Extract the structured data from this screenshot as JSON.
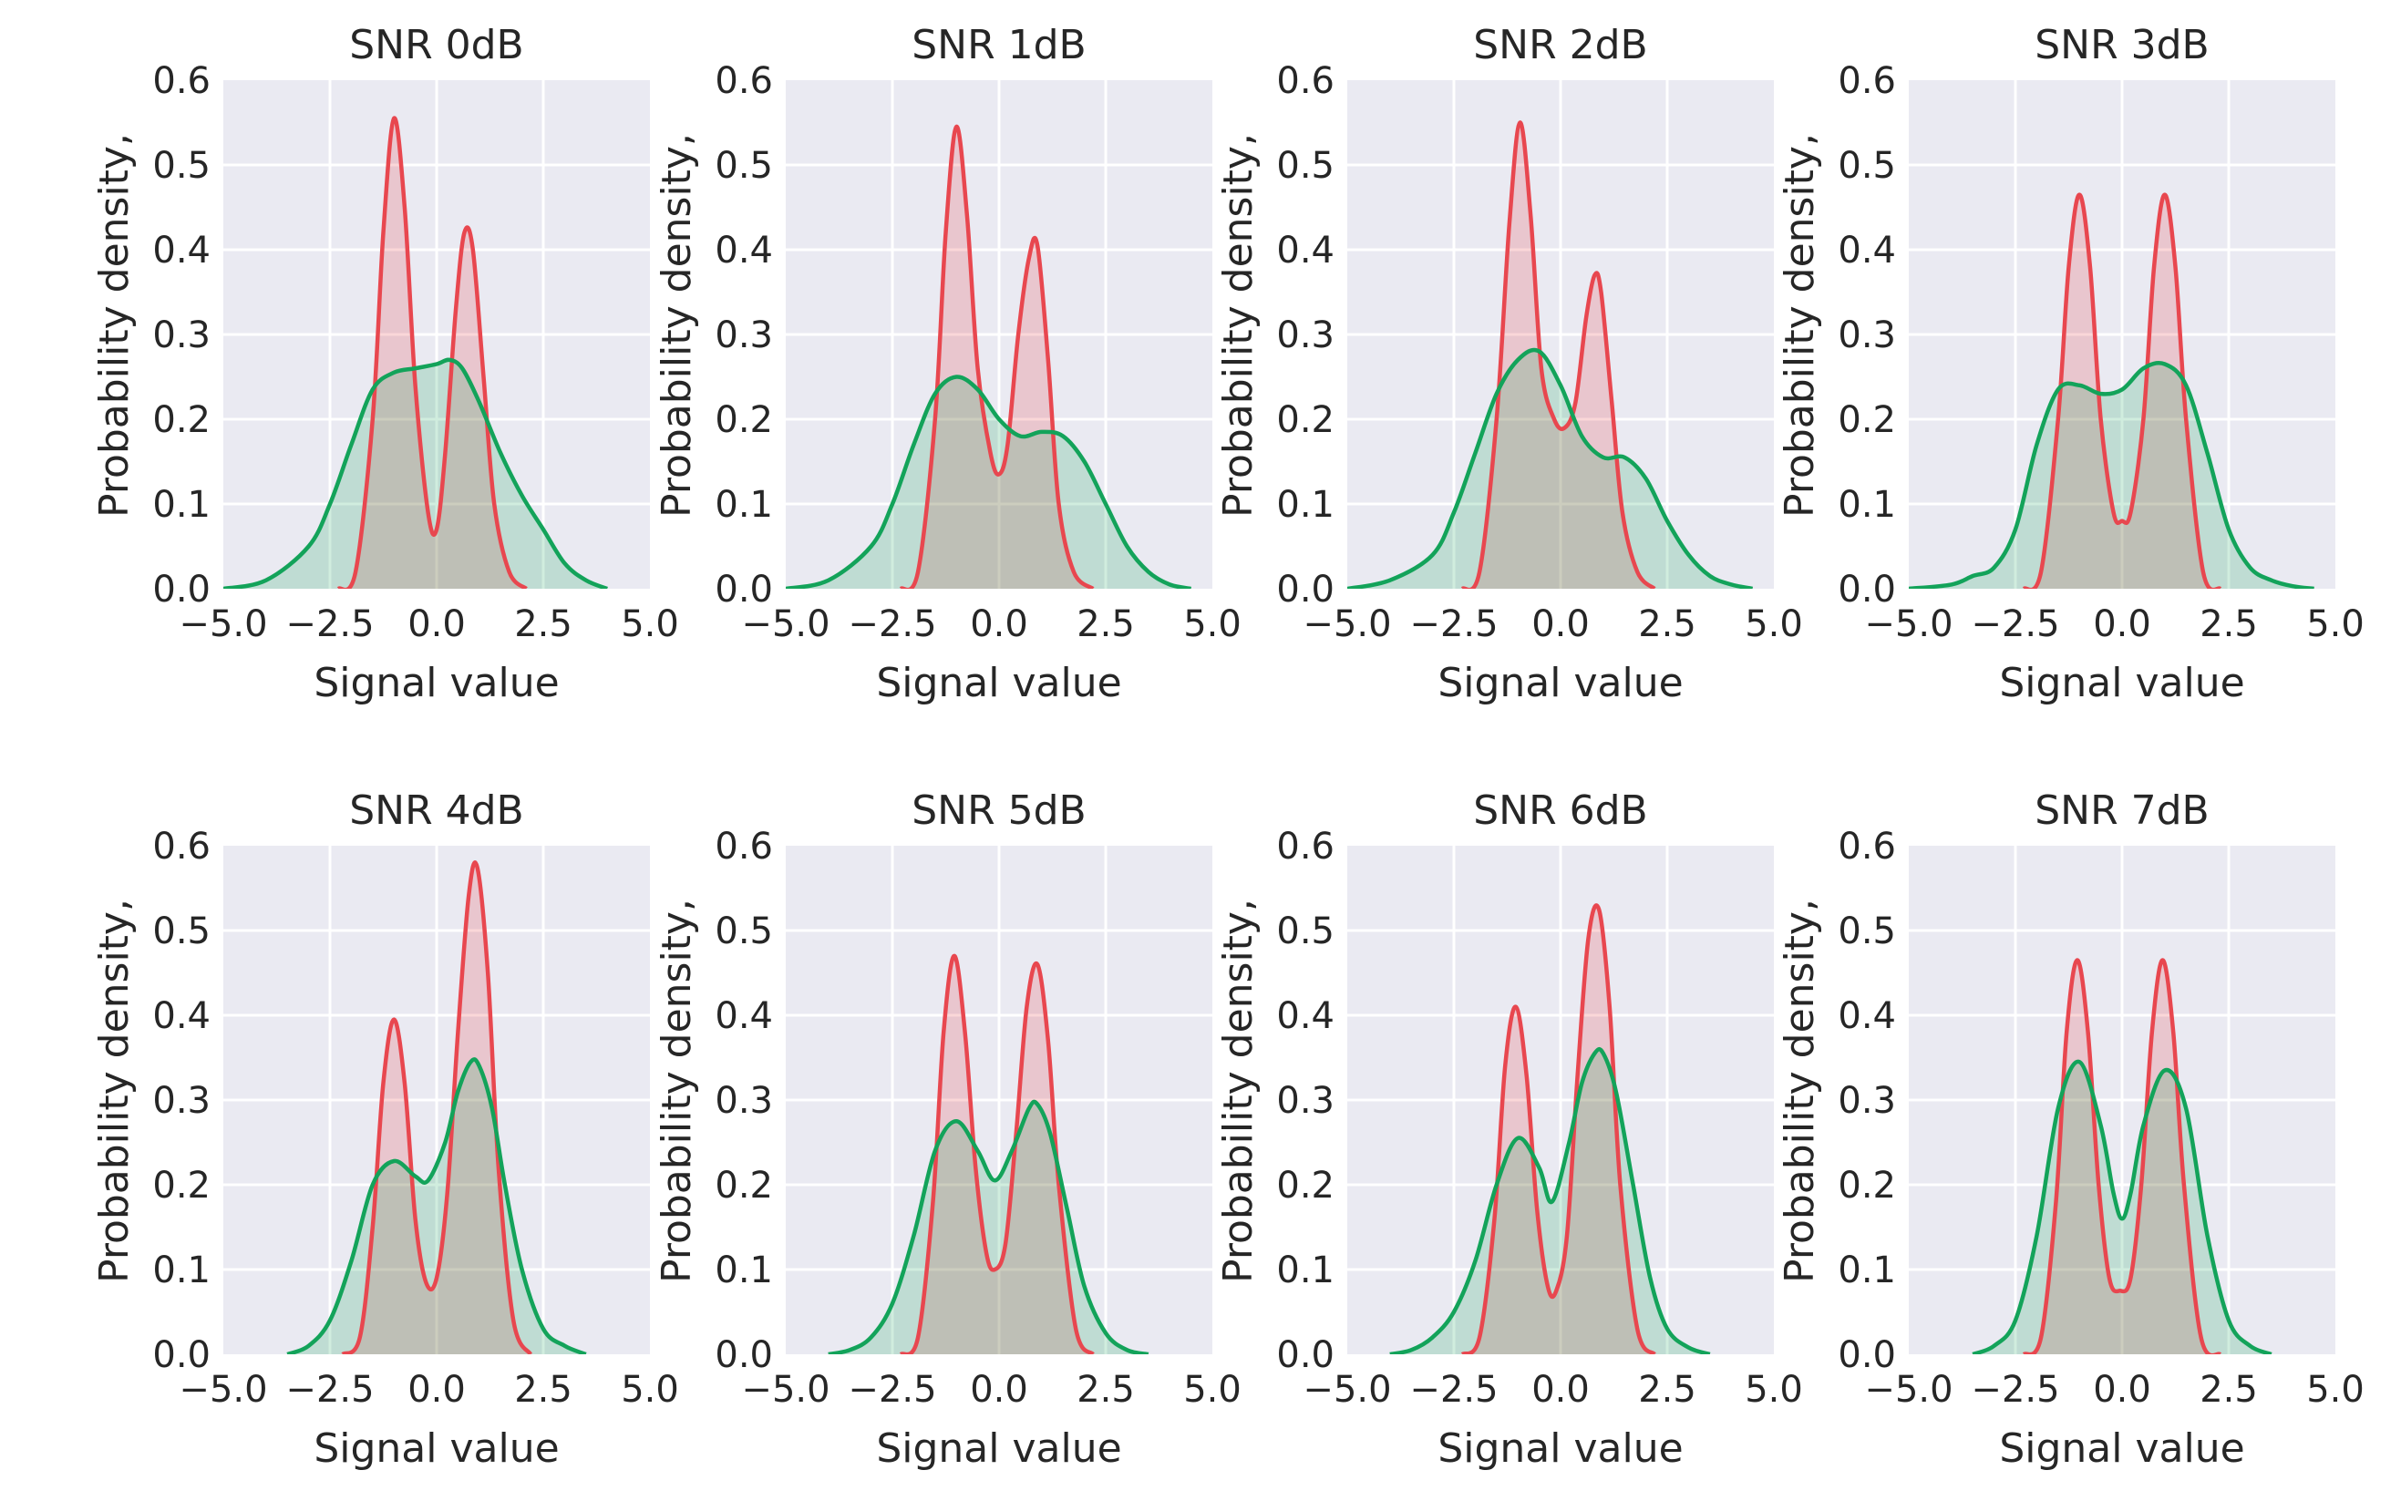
{
  "colors": {
    "background": "#eaeaf2",
    "grid": "#ffffff",
    "red": "#e8474f",
    "red_fill": "rgba(232,71,79,0.22)",
    "green": "#13a35a",
    "green_fill": "rgba(19,163,90,0.20)",
    "text": "#262626"
  },
  "chart_data": [
    {
      "type": "area",
      "title": "SNR 0dB",
      "xlabel": "Signal value",
      "ylabel": "Probability density,",
      "xlim": [
        -5,
        5
      ],
      "ylim": [
        0,
        0.6
      ],
      "xticks": [
        "−5.0",
        "−2.5",
        "0.0",
        "2.5",
        "5.0"
      ],
      "yticks": [
        "0.0",
        "0.1",
        "0.2",
        "0.3",
        "0.4",
        "0.5",
        "0.6"
      ],
      "series": [
        {
          "name": "red",
          "x": [
            -2.3,
            -1.9,
            -1.5,
            -1.25,
            -1.0,
            -0.75,
            -0.5,
            -0.2,
            0.0,
            0.2,
            0.45,
            0.65,
            0.85,
            1.1,
            1.35,
            1.7,
            2.1
          ],
          "y": [
            0,
            0.02,
            0.2,
            0.42,
            0.555,
            0.45,
            0.24,
            0.09,
            0.07,
            0.16,
            0.33,
            0.42,
            0.4,
            0.25,
            0.1,
            0.02,
            0
          ]
        },
        {
          "name": "green",
          "x": [
            -5,
            -4,
            -3,
            -2.5,
            -2,
            -1.5,
            -1,
            -0.5,
            0,
            0.3,
            0.6,
            1,
            1.5,
            2,
            2.5,
            3,
            3.5,
            4
          ],
          "y": [
            0,
            0.01,
            0.05,
            0.1,
            0.17,
            0.235,
            0.255,
            0.26,
            0.265,
            0.27,
            0.26,
            0.22,
            0.16,
            0.11,
            0.07,
            0.03,
            0.01,
            0
          ]
        }
      ]
    },
    {
      "type": "area",
      "title": "SNR 1dB",
      "xlabel": "Signal value",
      "ylabel": "Probability density,",
      "xlim": [
        -5,
        5
      ],
      "ylim": [
        0,
        0.6
      ],
      "xticks": [
        "−5.0",
        "−2.5",
        "0.0",
        "2.5",
        "5.0"
      ],
      "yticks": [
        "0.0",
        "0.1",
        "0.2",
        "0.3",
        "0.4",
        "0.5",
        "0.6"
      ],
      "series": [
        {
          "name": "red",
          "x": [
            -2.3,
            -1.9,
            -1.5,
            -1.25,
            -1.0,
            -0.75,
            -0.5,
            -0.2,
            0.0,
            0.2,
            0.45,
            0.7,
            0.9,
            1.15,
            1.4,
            1.75,
            2.2
          ],
          "y": [
            0,
            0.02,
            0.2,
            0.42,
            0.545,
            0.44,
            0.26,
            0.16,
            0.135,
            0.17,
            0.3,
            0.39,
            0.405,
            0.27,
            0.1,
            0.02,
            0
          ]
        },
        {
          "name": "green",
          "x": [
            -5,
            -4,
            -3,
            -2.5,
            -2,
            -1.5,
            -1,
            -0.5,
            0,
            0.5,
            1,
            1.5,
            2,
            2.5,
            3,
            3.5,
            4,
            4.5
          ],
          "y": [
            0,
            0.01,
            0.05,
            0.1,
            0.17,
            0.23,
            0.25,
            0.235,
            0.2,
            0.18,
            0.185,
            0.18,
            0.15,
            0.1,
            0.05,
            0.02,
            0.005,
            0
          ]
        }
      ]
    },
    {
      "type": "area",
      "title": "SNR 2dB",
      "xlabel": "Signal value",
      "ylabel": "Probability density,",
      "xlim": [
        -5,
        5
      ],
      "ylim": [
        0,
        0.6
      ],
      "xticks": [
        "−5.0",
        "−2.5",
        "0.0",
        "2.5",
        "5.0"
      ],
      "yticks": [
        "0.0",
        "0.1",
        "0.2",
        "0.3",
        "0.4",
        "0.5",
        "0.6"
      ],
      "series": [
        {
          "name": "red",
          "x": [
            -2.3,
            -1.9,
            -1.5,
            -1.2,
            -0.95,
            -0.7,
            -0.45,
            -0.15,
            0.1,
            0.35,
            0.6,
            0.8,
            0.95,
            1.2,
            1.45,
            1.8,
            2.2
          ],
          "y": [
            0,
            0.02,
            0.2,
            0.43,
            0.55,
            0.44,
            0.26,
            0.2,
            0.19,
            0.22,
            0.32,
            0.37,
            0.35,
            0.22,
            0.09,
            0.02,
            0
          ]
        },
        {
          "name": "green",
          "x": [
            -5,
            -4,
            -3,
            -2.5,
            -2,
            -1.5,
            -1,
            -0.5,
            0,
            0.5,
            1,
            1.5,
            2,
            2.5,
            3,
            3.5,
            4,
            4.5
          ],
          "y": [
            0,
            0.01,
            0.04,
            0.09,
            0.16,
            0.23,
            0.27,
            0.28,
            0.24,
            0.18,
            0.155,
            0.155,
            0.13,
            0.08,
            0.04,
            0.015,
            0.005,
            0
          ]
        }
      ]
    },
    {
      "type": "area",
      "title": "SNR 3dB",
      "xlabel": "Signal value",
      "ylabel": "Probability density,",
      "xlim": [
        -5,
        5
      ],
      "ylim": [
        0,
        0.6
      ],
      "xticks": [
        "−5.0",
        "−2.5",
        "0.0",
        "2.5",
        "5.0"
      ],
      "yticks": [
        "0.0",
        "0.1",
        "0.2",
        "0.3",
        "0.4",
        "0.5",
        "0.6"
      ],
      "series": [
        {
          "name": "red",
          "x": [
            -2.3,
            -1.9,
            -1.5,
            -1.25,
            -1.0,
            -0.75,
            -0.5,
            -0.2,
            0.0,
            0.2,
            0.5,
            0.75,
            1.0,
            1.25,
            1.5,
            1.9,
            2.3
          ],
          "y": [
            0,
            0.02,
            0.2,
            0.38,
            0.465,
            0.38,
            0.2,
            0.09,
            0.08,
            0.09,
            0.2,
            0.38,
            0.465,
            0.38,
            0.2,
            0.02,
            0
          ]
        },
        {
          "name": "green",
          "x": [
            -5,
            -4,
            -3.5,
            -3,
            -2.5,
            -2,
            -1.5,
            -1,
            -0.5,
            0,
            0.5,
            1,
            1.5,
            2,
            2.5,
            3,
            3.5,
            4,
            4.5
          ],
          "y": [
            0,
            0.005,
            0.015,
            0.025,
            0.07,
            0.17,
            0.235,
            0.24,
            0.23,
            0.235,
            0.26,
            0.265,
            0.24,
            0.16,
            0.07,
            0.025,
            0.01,
            0.003,
            0
          ]
        }
      ]
    },
    {
      "type": "area",
      "title": "SNR 4dB",
      "xlabel": "Signal value",
      "ylabel": "Probability density,",
      "xlim": [
        -5,
        5
      ],
      "ylim": [
        0,
        0.6
      ],
      "xticks": [
        "−5.0",
        "−2.5",
        "0.0",
        "2.5",
        "5.0"
      ],
      "yticks": [
        "0.0",
        "0.1",
        "0.2",
        "0.3",
        "0.4",
        "0.5",
        "0.6"
      ],
      "series": [
        {
          "name": "red",
          "x": [
            -2.2,
            -1.8,
            -1.5,
            -1.25,
            -1.0,
            -0.75,
            -0.5,
            -0.25,
            0.0,
            0.25,
            0.5,
            0.75,
            0.95,
            1.2,
            1.45,
            1.8,
            2.2
          ],
          "y": [
            0,
            0.02,
            0.15,
            0.32,
            0.395,
            0.32,
            0.16,
            0.085,
            0.09,
            0.19,
            0.38,
            0.54,
            0.575,
            0.45,
            0.22,
            0.04,
            0
          ]
        },
        {
          "name": "green",
          "x": [
            -3.5,
            -3,
            -2.5,
            -2,
            -1.5,
            -1.0,
            -0.5,
            -0.2,
            0.2,
            0.5,
            0.8,
            1.0,
            1.3,
            1.6,
            2,
            2.5,
            3,
            3.5
          ],
          "y": [
            0,
            0.01,
            0.04,
            0.11,
            0.2,
            0.228,
            0.21,
            0.205,
            0.25,
            0.31,
            0.345,
            0.34,
            0.29,
            0.2,
            0.1,
            0.03,
            0.01,
            0
          ]
        }
      ]
    },
    {
      "type": "area",
      "title": "SNR 5dB",
      "xlabel": "Signal value",
      "ylabel": "Probability density,",
      "xlim": [
        -5,
        5
      ],
      "ylim": [
        0,
        0.6
      ],
      "xticks": [
        "−5.0",
        "−2.5",
        "0.0",
        "2.5",
        "5.0"
      ],
      "yticks": [
        "0.0",
        "0.1",
        "0.2",
        "0.3",
        "0.4",
        "0.5",
        "0.6"
      ],
      "series": [
        {
          "name": "red",
          "x": [
            -2.3,
            -1.9,
            -1.55,
            -1.3,
            -1.05,
            -0.8,
            -0.55,
            -0.3,
            -0.1,
            0.15,
            0.4,
            0.65,
            0.9,
            1.15,
            1.4,
            1.8,
            2.2
          ],
          "y": [
            0,
            0.02,
            0.18,
            0.38,
            0.47,
            0.38,
            0.22,
            0.12,
            0.1,
            0.13,
            0.26,
            0.41,
            0.46,
            0.37,
            0.2,
            0.03,
            0
          ]
        },
        {
          "name": "green",
          "x": [
            -4,
            -3.5,
            -3,
            -2.5,
            -2,
            -1.5,
            -1.0,
            -0.5,
            -0.1,
            0.3,
            0.7,
            0.9,
            1.2,
            1.6,
            2,
            2.5,
            3,
            3.5
          ],
          "y": [
            0,
            0.005,
            0.02,
            0.06,
            0.14,
            0.24,
            0.275,
            0.24,
            0.205,
            0.24,
            0.29,
            0.295,
            0.26,
            0.17,
            0.08,
            0.025,
            0.005,
            0
          ]
        }
      ]
    },
    {
      "type": "area",
      "title": "SNR 6dB",
      "xlabel": "Signal value",
      "ylabel": "Probability density,",
      "xlim": [
        -5,
        5
      ],
      "ylim": [
        0,
        0.6
      ],
      "xticks": [
        "−5.0",
        "−2.5",
        "0.0",
        "2.5",
        "5.0"
      ],
      "yticks": [
        "0.0",
        "0.1",
        "0.2",
        "0.3",
        "0.4",
        "0.5",
        "0.6"
      ],
      "series": [
        {
          "name": "red",
          "x": [
            -2.3,
            -1.9,
            -1.55,
            -1.3,
            -1.05,
            -0.8,
            -0.55,
            -0.3,
            -0.1,
            0.15,
            0.4,
            0.65,
            0.9,
            1.15,
            1.4,
            1.8,
            2.2
          ],
          "y": [
            0,
            0.02,
            0.16,
            0.34,
            0.41,
            0.33,
            0.17,
            0.08,
            0.075,
            0.14,
            0.33,
            0.49,
            0.525,
            0.41,
            0.2,
            0.03,
            0
          ]
        },
        {
          "name": "green",
          "x": [
            -4,
            -3.5,
            -3,
            -2.5,
            -2,
            -1.5,
            -1.0,
            -0.5,
            -0.2,
            0.2,
            0.5,
            0.8,
            1.0,
            1.3,
            1.7,
            2.1,
            2.5,
            3,
            3.5
          ],
          "y": [
            0,
            0.005,
            0.02,
            0.05,
            0.11,
            0.2,
            0.255,
            0.22,
            0.18,
            0.25,
            0.32,
            0.355,
            0.355,
            0.31,
            0.2,
            0.09,
            0.03,
            0.008,
            0
          ]
        }
      ]
    },
    {
      "type": "area",
      "title": "SNR 7dB",
      "xlabel": "Signal value",
      "ylabel": "Probability density,",
      "xlim": [
        -5,
        5
      ],
      "ylim": [
        0,
        0.6
      ],
      "xticks": [
        "−5.0",
        "−2.5",
        "0.0",
        "2.5",
        "5.0"
      ],
      "yticks": [
        "0.0",
        "0.1",
        "0.2",
        "0.3",
        "0.4",
        "0.5",
        "0.6"
      ],
      "series": [
        {
          "name": "red",
          "x": [
            -2.3,
            -1.9,
            -1.55,
            -1.3,
            -1.05,
            -0.8,
            -0.55,
            -0.3,
            -0.05,
            0.2,
            0.45,
            0.7,
            0.95,
            1.2,
            1.45,
            1.85,
            2.3
          ],
          "y": [
            0,
            0.02,
            0.18,
            0.38,
            0.465,
            0.38,
            0.2,
            0.09,
            0.075,
            0.09,
            0.2,
            0.38,
            0.465,
            0.38,
            0.2,
            0.02,
            0
          ]
        },
        {
          "name": "green",
          "x": [
            -3.5,
            -3,
            -2.5,
            -2,
            -1.5,
            -1.0,
            -0.5,
            -0.2,
            0,
            0.2,
            0.5,
            1.0,
            1.5,
            2,
            2.5,
            3,
            3.5
          ],
          "y": [
            0,
            0.01,
            0.04,
            0.14,
            0.29,
            0.345,
            0.27,
            0.19,
            0.16,
            0.19,
            0.27,
            0.335,
            0.29,
            0.14,
            0.04,
            0.01,
            0
          ]
        }
      ]
    }
  ]
}
